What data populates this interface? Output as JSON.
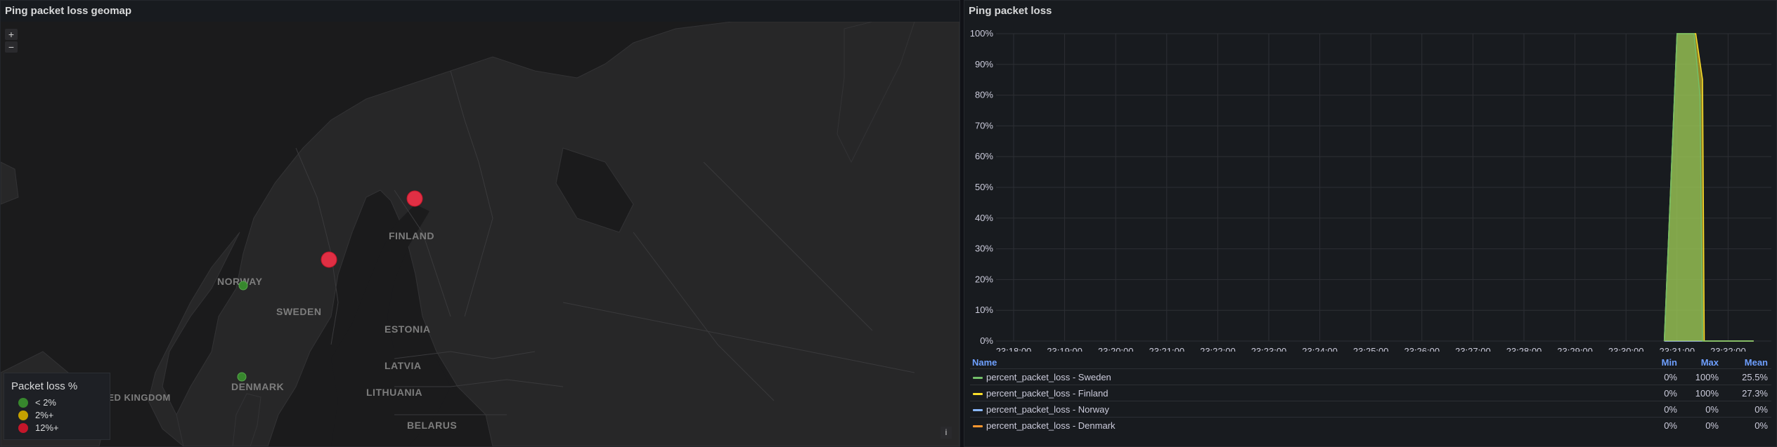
{
  "map_panel": {
    "title": "Ping packet loss geomap",
    "zoom_in": "+",
    "zoom_out": "−",
    "info": "i",
    "country_labels": [
      {
        "id": "finland",
        "text": "FINLAND"
      },
      {
        "id": "norway",
        "text": "NORWAY"
      },
      {
        "id": "sweden",
        "text": "SWEDEN"
      },
      {
        "id": "estonia",
        "text": "ESTONIA"
      },
      {
        "id": "latvia",
        "text": "LATVIA"
      },
      {
        "id": "lithuania",
        "text": "LITHUANIA"
      },
      {
        "id": "belarus",
        "text": "BELARUS"
      },
      {
        "id": "denmark",
        "text": "DENMARK"
      },
      {
        "id": "uk",
        "text": "UNITED KINGDOM"
      }
    ],
    "legend": {
      "title": "Packet loss %",
      "items": [
        {
          "label": "< 2%",
          "color": "#37872d"
        },
        {
          "label": "2%+",
          "color": "#c4a000"
        },
        {
          "label": "12%+",
          "color": "#c4162a"
        }
      ]
    },
    "markers": [
      {
        "name": "Finland",
        "color": "#e02f44"
      },
      {
        "name": "Sweden",
        "color": "#e02f44"
      },
      {
        "name": "Norway",
        "color": "#37872d"
      },
      {
        "name": "Denmark",
        "color": "#37872d"
      }
    ]
  },
  "ts_panel": {
    "title": "Ping packet loss",
    "legend_headers": {
      "name": "Name",
      "min": "Min",
      "max": "Max",
      "mean": "Mean"
    },
    "series_rows": [
      {
        "name": "percent_packet_loss - Sweden",
        "color": "#73bf69",
        "min": "0%",
        "max": "100%",
        "mean": "25.5%"
      },
      {
        "name": "percent_packet_loss - Finland",
        "color": "#fade2a",
        "min": "0%",
        "max": "100%",
        "mean": "27.3%"
      },
      {
        "name": "percent_packet_loss - Norway",
        "color": "#8ab8ff",
        "min": "0%",
        "max": "0%",
        "mean": "0%"
      },
      {
        "name": "percent_packet_loss - Denmark",
        "color": "#ff9830",
        "min": "0%",
        "max": "0%",
        "mean": "0%"
      }
    ]
  },
  "chart_data": {
    "type": "area",
    "title": "Ping packet loss",
    "xlabel": "",
    "ylabel": "",
    "y_ticks": [
      "0%",
      "10%",
      "20%",
      "30%",
      "40%",
      "50%",
      "60%",
      "70%",
      "80%",
      "90%",
      "100%"
    ],
    "ylim": [
      0,
      100
    ],
    "x_ticks": [
      "23:18:00",
      "23:19:00",
      "23:20:00",
      "23:21:00",
      "23:22:00",
      "23:23:00",
      "23:24:00",
      "23:25:00",
      "23:26:00",
      "23:27:00",
      "23:28:00",
      "23:29:00",
      "23:30:00",
      "23:31:00",
      "23:32:00"
    ],
    "grid": true,
    "legend_placement": "bottom",
    "series": [
      {
        "name": "percent_packet_loss - Sweden",
        "color": "#73bf69",
        "points": [
          [
            "23:30:45",
            0
          ],
          [
            "23:31:00",
            100
          ],
          [
            "23:31:20",
            100
          ],
          [
            "23:31:27",
            80
          ],
          [
            "23:31:30",
            0
          ],
          [
            "23:32:30",
            0
          ]
        ]
      },
      {
        "name": "percent_packet_loss - Finland",
        "color": "#fade2a",
        "points": [
          [
            "23:30:45",
            0
          ],
          [
            "23:31:00",
            100
          ],
          [
            "23:31:22",
            100
          ],
          [
            "23:31:30",
            85
          ],
          [
            "23:31:32",
            0
          ],
          [
            "23:32:30",
            0
          ]
        ]
      },
      {
        "name": "percent_packet_loss - Norway",
        "color": "#8ab8ff",
        "points": [
          [
            "23:30:45",
            0
          ],
          [
            "23:32:30",
            0
          ]
        ]
      },
      {
        "name": "percent_packet_loss - Denmark",
        "color": "#ff9830",
        "points": [
          [
            "23:30:45",
            0
          ],
          [
            "23:32:30",
            0
          ]
        ]
      }
    ]
  }
}
